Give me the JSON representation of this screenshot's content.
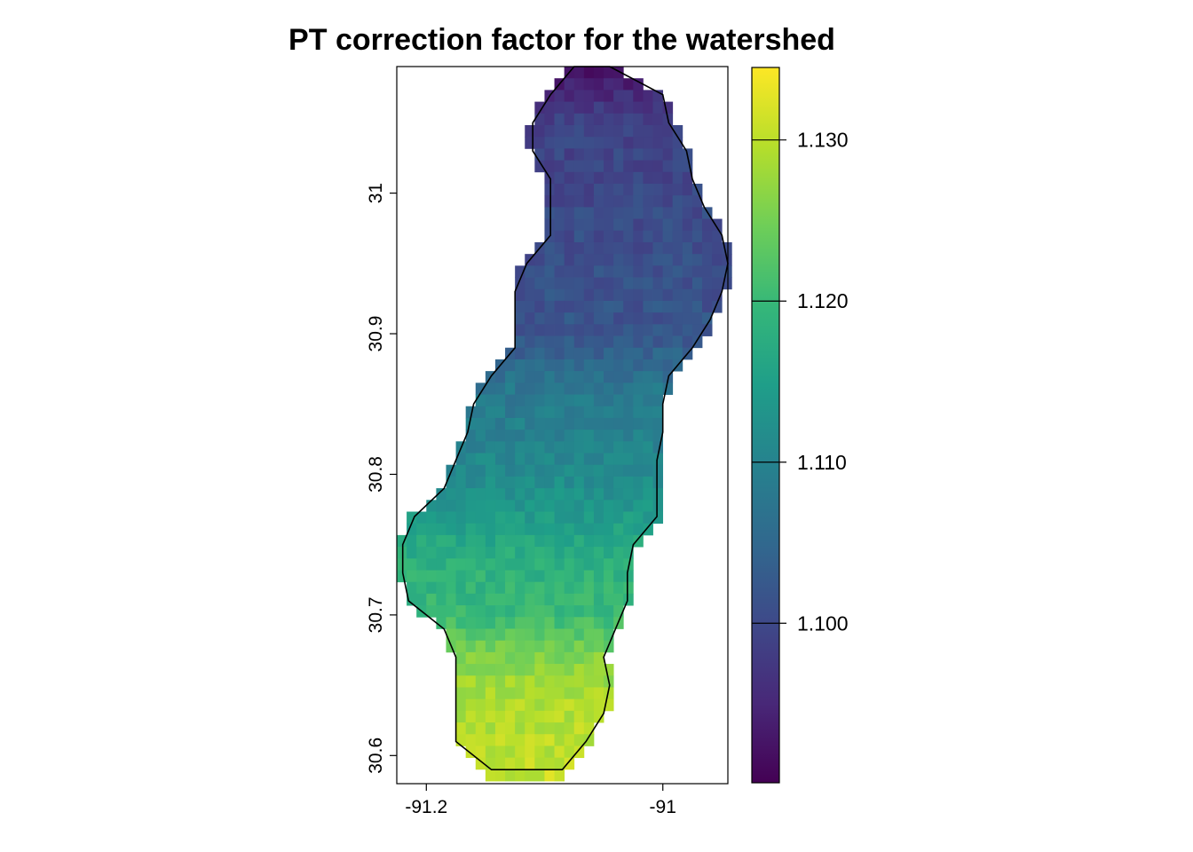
{
  "chart_data": {
    "type": "heatmap",
    "title": "PT correction factor for the watershed",
    "xlabel": "",
    "ylabel": "",
    "xlim": [
      -91.225,
      -90.945
    ],
    "ylim": [
      30.58,
      31.09
    ],
    "x_ticks": [
      -91.2,
      -91
    ],
    "x_tick_labels": [
      "-91.2",
      "-91"
    ],
    "y_ticks": [
      30.6,
      30.7,
      30.8,
      30.9,
      31
    ],
    "y_tick_labels": [
      "30.6",
      "30.7",
      "30.8",
      "30.9",
      "31"
    ],
    "cell_size_deg": 0.00833,
    "colorbar": {
      "range": [
        1.0901,
        1.1345
      ],
      "ticks": [
        1.1,
        1.11,
        1.12,
        1.13
      ],
      "tick_labels": [
        "1.100",
        "1.110",
        "1.120",
        "1.130"
      ],
      "palette": "viridis"
    },
    "value_profile": {
      "latitude": [
        31.09,
        31.05,
        31.0,
        30.95,
        30.9,
        30.86,
        30.82,
        30.78,
        30.74,
        30.7,
        30.67,
        30.64,
        30.6,
        30.58
      ],
      "value": [
        1.092,
        1.099,
        1.1,
        1.101,
        1.102,
        1.108,
        1.11,
        1.113,
        1.118,
        1.12,
        1.126,
        1.129,
        1.13,
        1.131
      ]
    },
    "extent_outline_note": "watershed boundary drawn as black line",
    "watershed_extent": {
      "latitude": [
        31.09,
        31.07,
        31.05,
        31.03,
        31.01,
        30.99,
        30.97,
        30.95,
        30.93,
        30.91,
        30.89,
        30.87,
        30.85,
        30.83,
        30.81,
        30.79,
        30.77,
        30.75,
        30.73,
        30.71,
        30.69,
        30.67,
        30.65,
        30.63,
        30.61,
        30.59
      ],
      "lon_west": [
        -91.075,
        -91.095,
        -91.11,
        -91.11,
        -91.095,
        -91.095,
        -91.095,
        -91.115,
        -91.125,
        -91.125,
        -91.125,
        -91.145,
        -91.16,
        -91.165,
        -91.175,
        -91.185,
        -91.21,
        -91.22,
        -91.22,
        -91.215,
        -91.185,
        -91.175,
        -91.175,
        -91.175,
        -91.175,
        -91.145
      ],
      "lon_east": [
        -91.045,
        -91.0,
        -90.995,
        -90.98,
        -90.975,
        -90.965,
        -90.95,
        -90.945,
        -90.95,
        -90.96,
        -90.975,
        -90.995,
        -91.0,
        -91.0,
        -91.005,
        -91.005,
        -91.005,
        -91.025,
        -91.03,
        -91.03,
        -91.04,
        -91.05,
        -91.045,
        -91.05,
        -91.065,
        -91.085
      ]
    }
  }
}
